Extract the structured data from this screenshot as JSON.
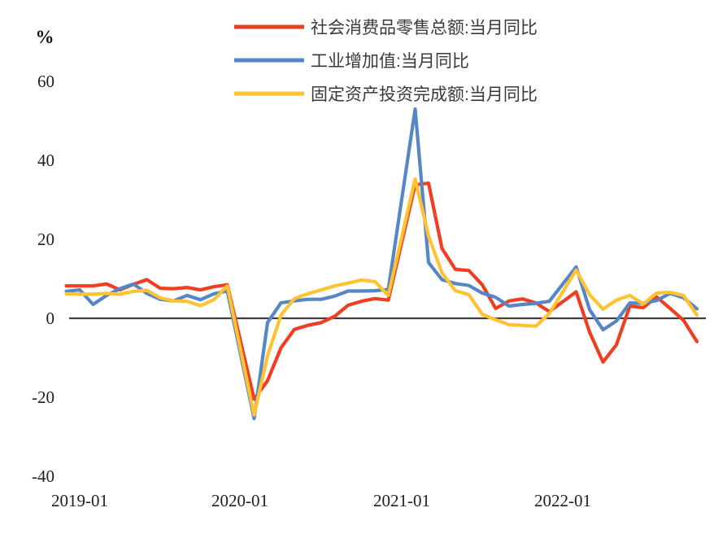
{
  "chart_data": {
    "type": "line",
    "unit_label": "%",
    "title": "",
    "xlabel": "",
    "ylabel": "%",
    "ylim": [
      -40,
      60
    ],
    "grid": false,
    "legend_position": "top-center",
    "yticks": [
      60,
      40,
      20,
      0,
      -20,
      -40
    ],
    "xticks": [
      "2019-01",
      "2020-01",
      "2021-01",
      "2022-01"
    ],
    "x": [
      "2018-12",
      "2019-01",
      "2019-02",
      "2019-03",
      "2019-04",
      "2019-05",
      "2019-06",
      "2019-07",
      "2019-08",
      "2019-09",
      "2019-10",
      "2019-11",
      "2019-12",
      "2020-01",
      "2020-02",
      "2020-03",
      "2020-04",
      "2020-05",
      "2020-06",
      "2020-07",
      "2020-08",
      "2020-09",
      "2020-10",
      "2020-11",
      "2020-12",
      "2021-01",
      "2021-02",
      "2021-03",
      "2021-04",
      "2021-05",
      "2021-06",
      "2021-07",
      "2021-08",
      "2021-09",
      "2021-10",
      "2021-11",
      "2021-12",
      "2022-01",
      "2022-02",
      "2022-03",
      "2022-04",
      "2022-05",
      "2022-06",
      "2022-07",
      "2022-08",
      "2022-09",
      "2022-10",
      "2022-11"
    ],
    "series": [
      {
        "name": "社会消费品零售总额:当月同比",
        "color": "#F03E23",
        "values": [
          8.2,
          8.2,
          8.2,
          8.7,
          7.2,
          8.6,
          9.8,
          7.6,
          7.5,
          7.8,
          7.2,
          8.0,
          8.5,
          null,
          -20.5,
          -15.8,
          -7.5,
          -2.8,
          -1.8,
          -1.1,
          0.5,
          3.3,
          4.3,
          5.0,
          4.6,
          null,
          33.8,
          34.2,
          17.7,
          12.4,
          12.1,
          8.5,
          2.5,
          4.4,
          4.9,
          3.9,
          1.7,
          null,
          6.7,
          -3.5,
          -11.1,
          -6.7,
          3.1,
          2.7,
          5.4,
          2.5,
          -0.5,
          -5.9
        ]
      },
      {
        "name": "工业增加值:当月同比",
        "color": "#5586C6",
        "values": [
          6.8,
          7.2,
          3.5,
          5.8,
          7.5,
          8.7,
          6.3,
          4.8,
          4.4,
          5.8,
          4.7,
          6.2,
          6.9,
          null,
          -25.4,
          -1.1,
          3.9,
          4.4,
          4.8,
          4.8,
          5.6,
          6.9,
          6.9,
          7.0,
          7.3,
          null,
          53.0,
          14.1,
          9.8,
          8.8,
          8.3,
          6.4,
          5.3,
          3.1,
          3.5,
          3.8,
          4.3,
          null,
          13.0,
          2.2,
          -2.9,
          -0.7,
          3.9,
          3.8,
          4.5,
          6.3,
          5.2,
          2.4
        ]
      },
      {
        "name": "固定资产投资完成额:当月同比",
        "color": "#FFC232",
        "values": [
          6.2,
          6.1,
          6.1,
          6.3,
          6.1,
          6.8,
          7.1,
          5.2,
          4.4,
          4.3,
          3.2,
          4.7,
          8.2,
          null,
          -24.5,
          -9.5,
          0.8,
          5.0,
          6.2,
          7.2,
          8.2,
          8.9,
          9.7,
          9.3,
          5.8,
          null,
          35.3,
          20.8,
          11.5,
          7.0,
          6.0,
          1.0,
          -0.4,
          -1.6,
          -1.8,
          -2.0,
          1.2,
          null,
          12.2,
          6.0,
          2.3,
          4.6,
          5.8,
          3.6,
          6.4,
          6.6,
          5.8,
          0.8
        ]
      }
    ],
    "zero_line_color": "#3F3F3F",
    "text_color": "#1F1F1F"
  }
}
